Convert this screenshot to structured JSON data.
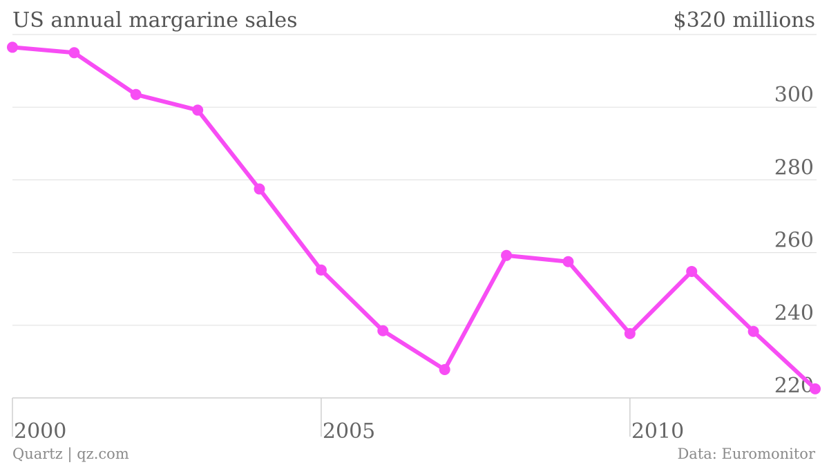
{
  "chart_data": {
    "type": "line",
    "title": "US annual margarine sales",
    "unit_label": "$320 millions",
    "x": [
      2000,
      2001,
      2002,
      2003,
      2004,
      2005,
      2006,
      2007,
      2008,
      2009,
      2010,
      2011,
      2012,
      2013
    ],
    "series": [
      {
        "values": [
          316.5,
          315,
          303.5,
          299.2,
          277.5,
          255.2,
          238.5,
          227.8,
          259.2,
          257.5,
          237.7,
          254.8,
          238.3,
          222.5
        ],
        "color": "#f74df4"
      }
    ],
    "ylim": [
      220,
      320
    ],
    "yticks": [
      220,
      240,
      260,
      280,
      300
    ],
    "xlim": [
      2000,
      2013
    ],
    "xticks": [
      2000,
      2005,
      2010
    ],
    "grid": true,
    "source": "Data: Euromonitor",
    "credit": "Quartz | qz.com"
  }
}
